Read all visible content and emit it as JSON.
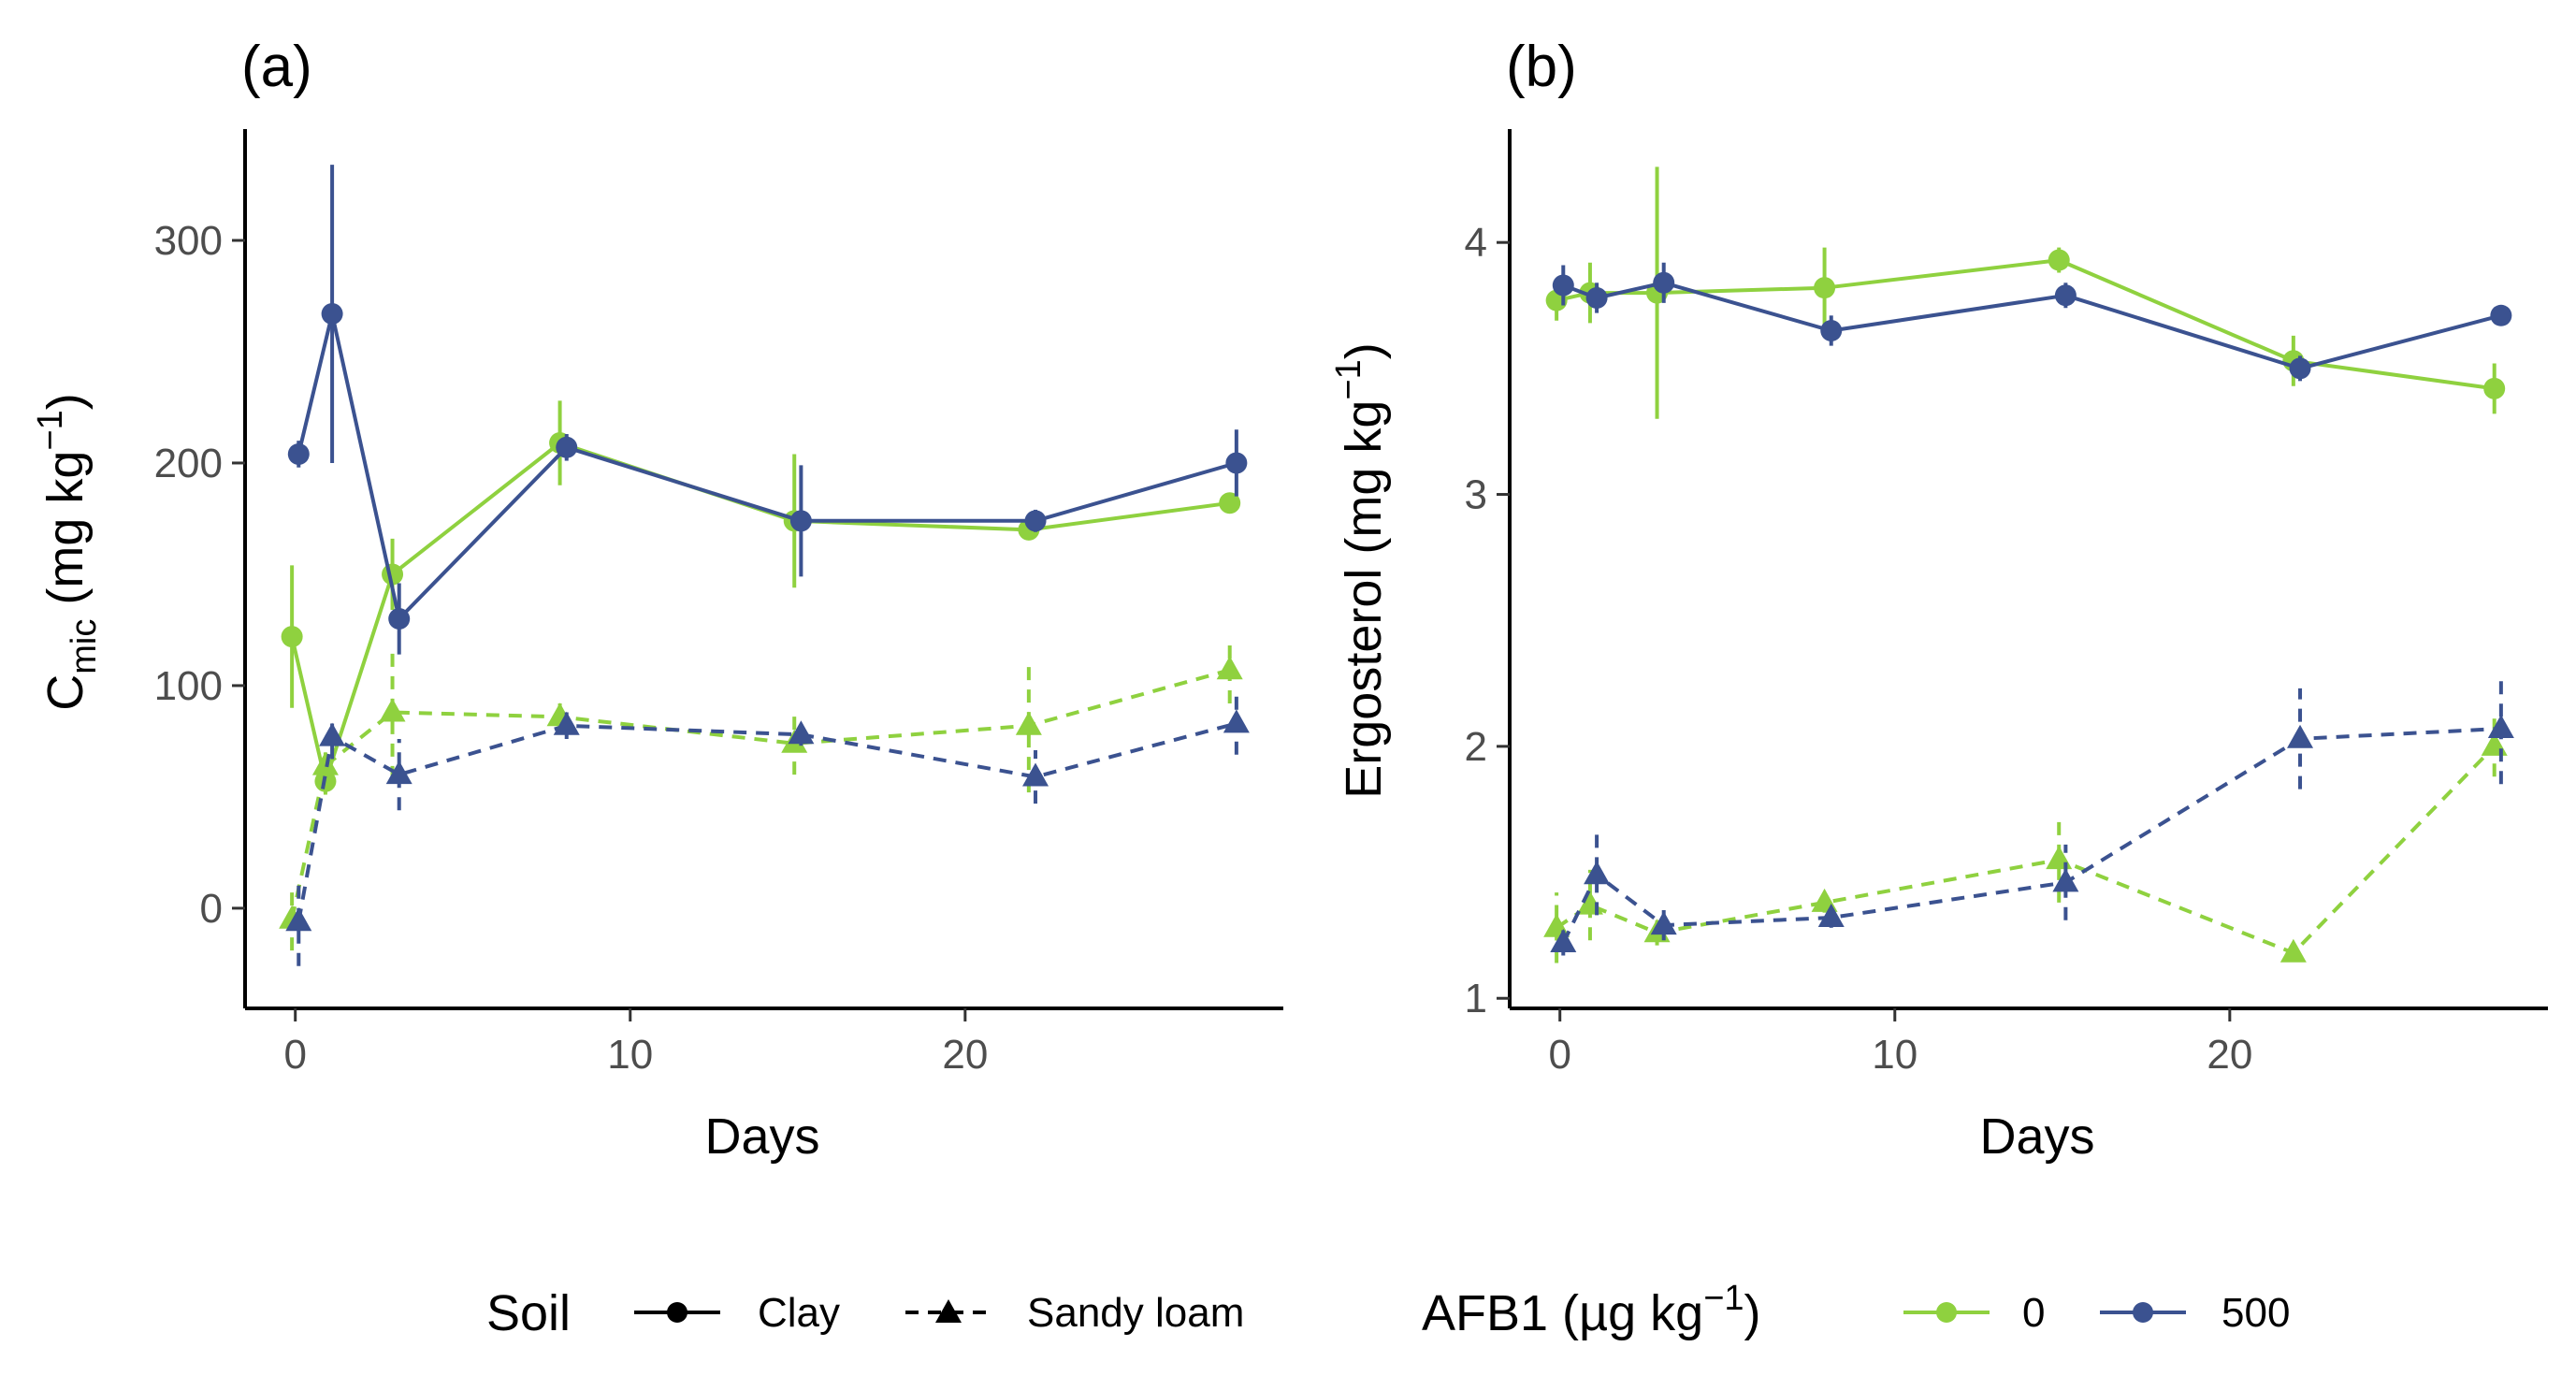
{
  "colors": {
    "afb1_0": "#8fd13f",
    "afb1_500": "#3b5290",
    "axis": "#000000",
    "tick_label": "#4d4d4d"
  },
  "chart_data": [
    {
      "type": "line",
      "panel": "(a)",
      "title": "(a)",
      "xlabel": "Days",
      "ylabel": {
        "main": "C",
        "sub": "mic",
        "units_prefix": " (mg kg",
        "sup": "−1",
        "units_suffix": ")"
      },
      "xlim": [
        -1.5,
        29.5
      ],
      "ylim": [
        -45,
        350
      ],
      "xticks": [
        0,
        10,
        20
      ],
      "xtick_labels": [
        "0",
        "10",
        "20"
      ],
      "yticks": [
        0,
        100,
        200,
        300
      ],
      "ytick_labels": [
        "0",
        "100",
        "200",
        "300"
      ],
      "grid": false,
      "series": [
        {
          "name": "Clay, AFB1 0",
          "soil": "Clay",
          "afb1": "0",
          "shape": "circle",
          "dashed": false,
          "x": [
            -0.1,
            0.9,
            2.9,
            7.9,
            14.9,
            21.9,
            27.9
          ],
          "y": [
            122,
            57,
            150,
            209,
            174,
            170,
            182
          ],
          "err": [
            32,
            6,
            16,
            19,
            30,
            4,
            3
          ]
        },
        {
          "name": "Clay, AFB1 500",
          "soil": "Clay",
          "afb1": "500",
          "shape": "circle",
          "dashed": false,
          "x": [
            0.1,
            1.1,
            3.1,
            8.1,
            15.1,
            22.1,
            28.1
          ],
          "y": [
            204,
            267,
            130,
            207,
            174,
            174,
            200
          ],
          "err": [
            6,
            67,
            16,
            6,
            25,
            5,
            15
          ]
        },
        {
          "name": "Sandy loam, AFB1 0",
          "soil": "Sandy loam",
          "afb1": "0",
          "shape": "triangle",
          "dashed": true,
          "x": [
            -0.1,
            0.9,
            2.9,
            7.9,
            14.9,
            21.9,
            27.9
          ],
          "y": [
            -5,
            64,
            88,
            86,
            74,
            82,
            107
          ],
          "err": [
            14,
            10,
            30,
            6,
            14,
            30,
            15
          ]
        },
        {
          "name": "Sandy loam, AFB1 500",
          "soil": "Sandy loam",
          "afb1": "500",
          "shape": "triangle",
          "dashed": true,
          "x": [
            0.1,
            1.1,
            3.1,
            8.1,
            15.1,
            22.1,
            28.1
          ],
          "y": [
            -6,
            77,
            60,
            82,
            78,
            59,
            83
          ],
          "err": [
            20,
            10,
            16,
            6,
            5,
            12,
            14
          ]
        }
      ]
    },
    {
      "type": "line",
      "panel": "(b)",
      "title": "(b)",
      "xlabel": "Days",
      "ylabel": {
        "main": "Ergosterol",
        "sub": "",
        "units_prefix": " (mg kg",
        "sup": "−1",
        "units_suffix": ")"
      },
      "xlim": [
        -1.5,
        29.5
      ],
      "ylim": [
        0.96,
        4.45
      ],
      "xticks": [
        0,
        10,
        20
      ],
      "xtick_labels": [
        "0",
        "10",
        "20"
      ],
      "yticks": [
        1,
        2,
        3,
        4
      ],
      "ytick_labels": [
        "1",
        "2",
        "3",
        "4"
      ],
      "grid": false,
      "series": [
        {
          "name": "Clay, AFB1 0",
          "soil": "Clay",
          "afb1": "0",
          "shape": "circle",
          "dashed": false,
          "x": [
            -0.1,
            0.9,
            2.9,
            7.9,
            14.9,
            21.9,
            27.9
          ],
          "y": [
            3.77,
            3.8,
            3.8,
            3.82,
            3.93,
            3.53,
            3.42
          ],
          "err": [
            0.08,
            0.12,
            0.5,
            0.16,
            0.05,
            0.1,
            0.1
          ]
        },
        {
          "name": "Clay, AFB1 500",
          "soil": "Clay",
          "afb1": "500",
          "shape": "circle",
          "dashed": false,
          "x": [
            0.1,
            1.1,
            3.1,
            8.1,
            15.1,
            22.1,
            28.1
          ],
          "y": [
            3.83,
            3.78,
            3.84,
            3.65,
            3.79,
            3.5,
            3.71
          ],
          "err": [
            0.08,
            0.06,
            0.08,
            0.06,
            0.05,
            0.05,
            0.04
          ]
        },
        {
          "name": "Sandy loam, AFB1 0",
          "soil": "Sandy loam",
          "afb1": "0",
          "shape": "triangle",
          "dashed": true,
          "x": [
            -0.1,
            0.9,
            2.9,
            7.9,
            14.9,
            21.9,
            27.9
          ],
          "y": [
            1.28,
            1.37,
            1.26,
            1.38,
            1.55,
            1.18,
            2.0
          ],
          "err": [
            0.14,
            0.14,
            0.05,
            0.04,
            0.17,
            0.03,
            0.12
          ]
        },
        {
          "name": "Sandy loam, AFB1 500",
          "soil": "Sandy loam",
          "afb1": "500",
          "shape": "triangle",
          "dashed": true,
          "x": [
            0.1,
            1.1,
            3.1,
            8.1,
            15.1,
            22.1,
            28.1
          ],
          "y": [
            1.22,
            1.49,
            1.29,
            1.32,
            1.46,
            2.03,
            2.07
          ],
          "err": [
            0.05,
            0.16,
            0.06,
            0.04,
            0.15,
            0.2,
            0.22
          ]
        }
      ]
    }
  ],
  "legend": {
    "position": "bottom",
    "soil": {
      "title": "Soil",
      "items": [
        {
          "label": "Clay",
          "shape": "circle",
          "dashed": false
        },
        {
          "label": "Sandy loam",
          "shape": "triangle",
          "dashed": true
        }
      ]
    },
    "afb1": {
      "title": {
        "prefix": "AFB1 (µg kg",
        "sup": "−1",
        "suffix": ")"
      },
      "items": [
        {
          "label": "0",
          "color_key": "afb1_0"
        },
        {
          "label": "500",
          "color_key": "afb1_500"
        }
      ]
    }
  }
}
